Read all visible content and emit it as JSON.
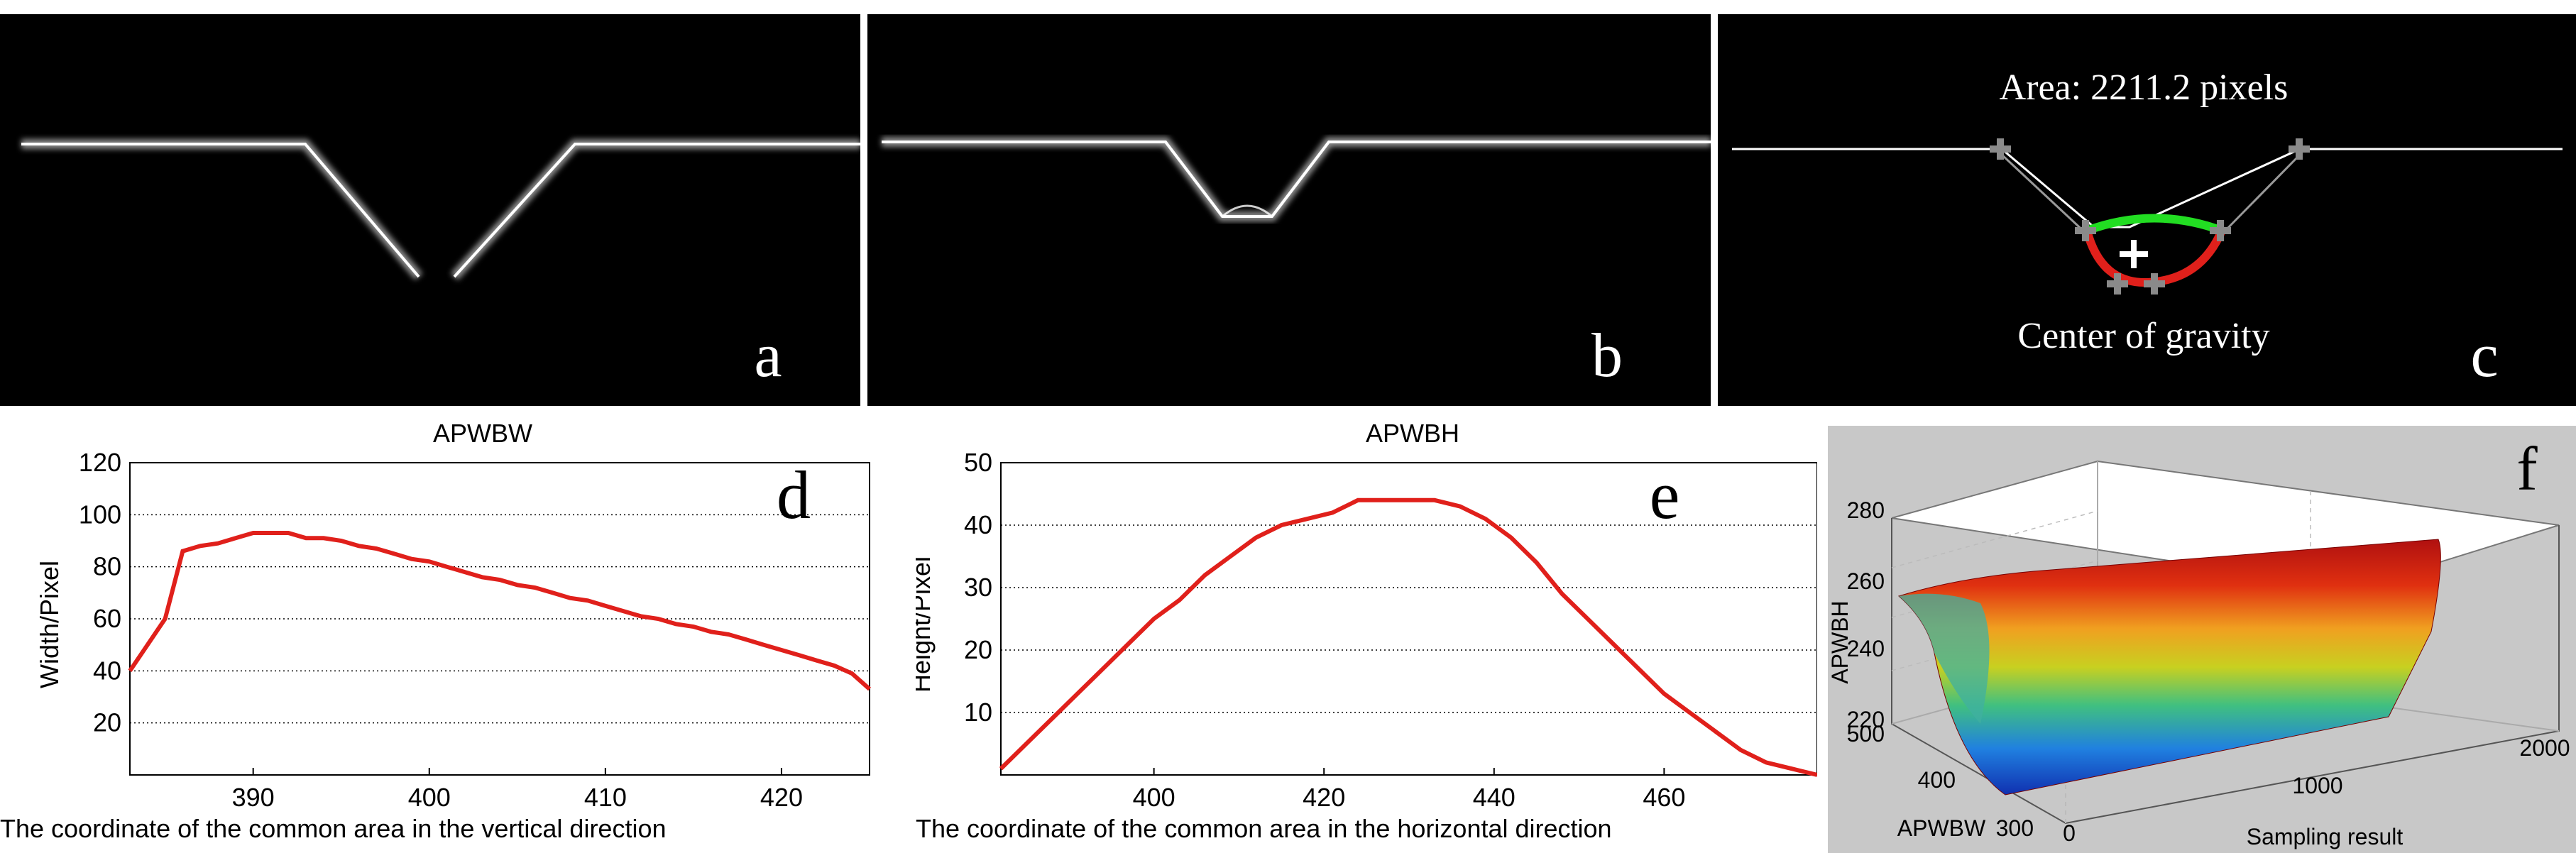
{
  "panels": {
    "a": {
      "letter": "a"
    },
    "b": {
      "letter": "b"
    },
    "c": {
      "letter": "c",
      "area_label": "Area: 2211.2 pixels",
      "center_label": "Center of gravity"
    },
    "d": {
      "letter": "d"
    },
    "e": {
      "letter": "e"
    },
    "f": {
      "letter": "f"
    }
  },
  "colors": {
    "line": "#e0201b",
    "gridline": "#000000",
    "green_curve": "#22dd22",
    "f_background": "#c8c8c8"
  },
  "chart_data": [
    {
      "id": "d",
      "type": "line",
      "title": "APWBW",
      "xlabel": "The coordinate of the common area in the vertical direction",
      "ylabel": "Width/Pixel",
      "xlim": [
        383,
        425
      ],
      "ylim": [
        0,
        120
      ],
      "xticks": [
        390,
        400,
        410,
        420
      ],
      "yticks": [
        20,
        40,
        60,
        80,
        100,
        120
      ],
      "grid": "horizontal dotted",
      "series": [
        {
          "x": [
            383,
            384,
            385,
            386,
            387,
            388,
            389,
            390,
            391,
            392,
            393,
            394,
            395,
            396,
            397,
            398,
            399,
            400,
            401,
            402,
            403,
            404,
            405,
            406,
            407,
            408,
            409,
            410,
            411,
            412,
            413,
            414,
            415,
            416,
            417,
            418,
            419,
            420,
            421,
            422,
            423,
            424,
            425
          ],
          "y": [
            40,
            50,
            60,
            86,
            88,
            89,
            91,
            93,
            93,
            93,
            91,
            91,
            90,
            88,
            87,
            85,
            83,
            82,
            80,
            78,
            76,
            75,
            73,
            72,
            70,
            68,
            67,
            65,
            63,
            61,
            60,
            58,
            57,
            55,
            54,
            52,
            50,
            48,
            46,
            44,
            42,
            39,
            33
          ]
        }
      ]
    },
    {
      "id": "e",
      "type": "line",
      "title": "APWBH",
      "xlabel": "The coordinate of the common area in the horizontal direction",
      "ylabel": "Height/Pixel",
      "xlim": [
        382,
        478
      ],
      "ylim": [
        0,
        50
      ],
      "xticks": [
        400,
        420,
        440,
        460
      ],
      "yticks": [
        10,
        20,
        30,
        40,
        50
      ],
      "grid": "horizontal dotted",
      "series": [
        {
          "x": [
            382,
            385,
            388,
            391,
            394,
            397,
            400,
            403,
            406,
            409,
            412,
            415,
            418,
            421,
            424,
            427,
            430,
            433,
            436,
            439,
            442,
            445,
            448,
            451,
            454,
            457,
            460,
            463,
            466,
            469,
            472,
            475,
            478
          ],
          "y": [
            1,
            5,
            9,
            13,
            17,
            21,
            25,
            28,
            32,
            35,
            38,
            40,
            41,
            42,
            44,
            44,
            44,
            44,
            43,
            41,
            38,
            34,
            29,
            25,
            21,
            17,
            13,
            10,
            7,
            4,
            2,
            1,
            0
          ]
        }
      ]
    },
    {
      "id": "f",
      "type": "surface3d",
      "xlabel": "Sampling result",
      "ylabel": "APWBW",
      "zlabel": "APWBH",
      "xticks": [
        "0",
        "1000",
        "2000"
      ],
      "yticks": [
        "300",
        "400",
        "500"
      ],
      "zticks": [
        "220",
        "240",
        "260",
        "280"
      ]
    }
  ]
}
